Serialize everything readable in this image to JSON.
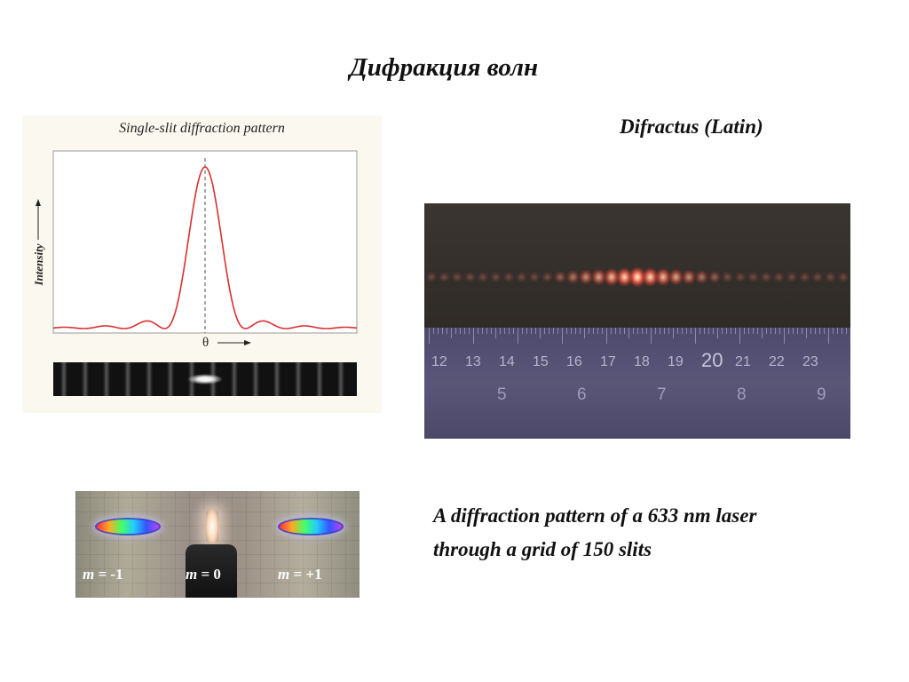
{
  "slide": {
    "title": "Дифракция волн",
    "latin_note": "Difractus (Latin)",
    "caption_line1": "A diffraction pattern of a 633 nm laser",
    "caption_line2": "through a grid of 150 slits"
  },
  "single_slit_figure": {
    "title": "Single-slit diffraction pattern",
    "y_label": "Intensity",
    "x_label": "θ",
    "curve_color": "#d93030"
  },
  "laser_photo": {
    "ruler_top_numbers": [
      "12",
      "13",
      "14",
      "15",
      "16",
      "17",
      "18",
      "19",
      "20",
      "21",
      "22",
      "23"
    ],
    "ruler_bottom_numbers": [
      "5",
      "6",
      "7",
      "8",
      "9"
    ]
  },
  "grating_photo": {
    "orders": [
      {
        "symbol": "m",
        "value": " = -1"
      },
      {
        "symbol": "m",
        "value": " = 0"
      },
      {
        "symbol": "m",
        "value": " = +1"
      }
    ]
  }
}
